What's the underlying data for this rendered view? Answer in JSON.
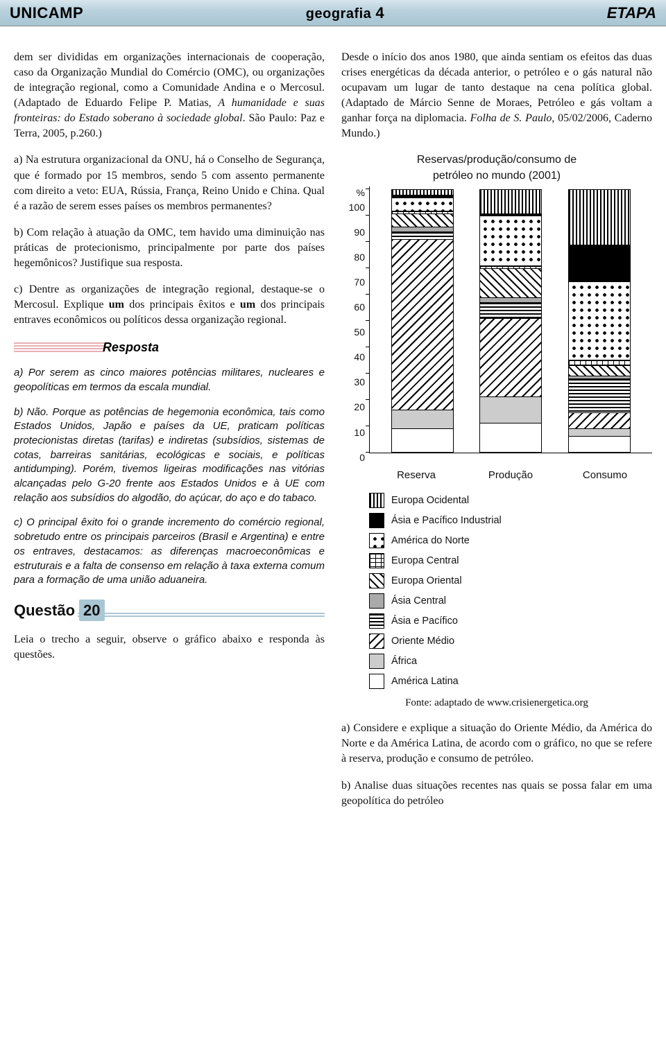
{
  "header": {
    "left": "UNICAMP",
    "center_a": "geografia ",
    "center_b": "4",
    "right": "ETAPA"
  },
  "left": {
    "p1": "dem ser divididas em organizações internacionais de cooperação, caso da Organização Mundial do Comércio (OMC), ou organizações de integração regional, como a Comunidade Andina e o Mercosul. (Adaptado de Eduardo Felipe P. Matias, ",
    "p1_ital": "A humanidade e suas fronteiras: do Estado soberano à sociedade global",
    "p1_b": ". São Paulo: Paz e Terra, 2005, p.260.)",
    "p2": "a) Na estrutura organizacional da ONU, há o Conselho de Segurança, que é formado por 15 membros, sendo 5 com assento permanente com direito a veto: EUA, Rússia, França, Reino Unido e China. Qual é a razão de serem esses países os membros permanentes?",
    "p3": "b) Com relação à atuação da OMC, tem havido uma diminuição nas práticas de protecionismo, principalmente por parte dos países hegemônicos? Justifique sua resposta.",
    "p4_a": "c) Dentre as organizações de integração regional, destaque-se o Mercosul. Explique ",
    "p4_b": "um",
    "p4_c": " dos principais êxitos e ",
    "p4_d": "um",
    "p4_e": " dos principais entraves econômicos ou políticos dessa organização regional.",
    "resposta_label": "Resposta",
    "ans_a": "a) Por serem as cinco maiores potências militares, nucleares e geopolíticas em termos da escala mundial.",
    "ans_b": "b) Não. Porque as potências de hegemonia econômica, tais como Estados Unidos, Japão e países da UE, praticam políticas protecionistas diretas (tarifas) e indiretas (subsídios, sistemas de cotas, barreiras sanitárias, ecológicas e sociais, e políticas antidumping). Porém, tivemos ligeiras modificações nas vitórias alcançadas pelo G-20 frente aos Estados Unidos e à UE com relação aos subsídios do algodão, do açúcar, do aço e do tabaco.",
    "ans_c": "c) O principal êxito foi o grande incremento do comércio regional, sobretudo entre os principais parceiros (Brasil e Argentina) e entre os entraves, destacamos: as diferenças macroeconômicas e estruturais e a falta de consenso em relação à taxa externa comum para a formação de uma união aduaneira.",
    "q_label": "Questão",
    "q_num": "20",
    "q_lead": "Leia o trecho a seguir, observe o gráfico abaixo e responda às questões."
  },
  "right": {
    "intro_a": "Desde o início dos anos 1980, que ainda sentiam os efeitos das duas crises energéticas da década anterior, o petróleo e o gás natural não ocupavam um lugar de tanto destaque na cena política global. (Adaptado de Márcio Senne de Moraes, Petróleo e gás voltam a ganhar força na diplomacia. ",
    "intro_ital": "Folha de S. Paulo",
    "intro_b": ", 05/02/2006, Caderno Mundo.)",
    "chart": {
      "title_l1": "Reservas/produção/consumo de",
      "title_l2": "petróleo no mundo (2001)",
      "y_unit": "%",
      "y_ticks": [
        "100",
        "90",
        "80",
        "70",
        "60",
        "50",
        "40",
        "30",
        "20",
        "10",
        "0"
      ],
      "categories": [
        "Reserva",
        "Produção",
        "Consumo"
      ],
      "legend": [
        {
          "key": "eur_oc",
          "label": "Europa Ocidental",
          "pat": "p-vert"
        },
        {
          "key": "asia_pac_ind",
          "label": "Ásia e Pacífico Industrial",
          "pat": "p-solid"
        },
        {
          "key": "am_norte",
          "label": "América do Norte",
          "pat": "p-dots"
        },
        {
          "key": "eur_cen",
          "label": "Europa Central",
          "pat": "p-brick"
        },
        {
          "key": "eur_ori",
          "label": "Europa Oriental",
          "pat": "p-diag"
        },
        {
          "key": "asia_cen",
          "label": "Ásia Central",
          "pat": "p-grey"
        },
        {
          "key": "asia_pac",
          "label": "Ásia e Pacífico",
          "pat": "p-horiz"
        },
        {
          "key": "or_med",
          "label": "Oriente Médio",
          "pat": "p-bdiag"
        },
        {
          "key": "africa",
          "label": "África",
          "pat": "p-lgrey"
        },
        {
          "key": "am_lat",
          "label": "América Latina",
          "pat": "p-white"
        }
      ],
      "bars": {
        "Reserva": {
          "eur_oc": 2,
          "asia_pac_ind": 1,
          "am_norte": 5,
          "eur_cen": 1,
          "eur_ori": 5,
          "asia_cen": 2,
          "asia_pac": 3,
          "or_med": 65,
          "africa": 7,
          "am_lat": 9
        },
        "Produção": {
          "eur_oc": 9,
          "asia_pac_ind": 1,
          "am_norte": 19,
          "eur_cen": 1,
          "eur_ori": 11,
          "asia_cen": 2,
          "asia_pac": 6,
          "or_med": 30,
          "africa": 10,
          "am_lat": 11
        },
        "Consumo": {
          "eur_oc": 21,
          "asia_pac_ind": 14,
          "am_norte": 30,
          "eur_cen": 2,
          "eur_ori": 4,
          "asia_cen": 1,
          "asia_pac": 13,
          "or_med": 6,
          "africa": 3,
          "am_lat": 6
        }
      },
      "stack_order": [
        "am_lat",
        "africa",
        "or_med",
        "asia_pac",
        "asia_cen",
        "eur_ori",
        "eur_cen",
        "am_norte",
        "asia_pac_ind",
        "eur_oc"
      ]
    },
    "source": "Fonte: adaptado de www.crisienergetica.org",
    "qa": "a) Considere e explique a situação do Oriente Médio, da América do Norte e da América Latina, de acordo com o gráfico, no que se refere à reserva, produção e consumo de petróleo.",
    "qb": "b) Analise duas situações recentes nas quais se possa falar em uma geopolítica do petróleo"
  }
}
